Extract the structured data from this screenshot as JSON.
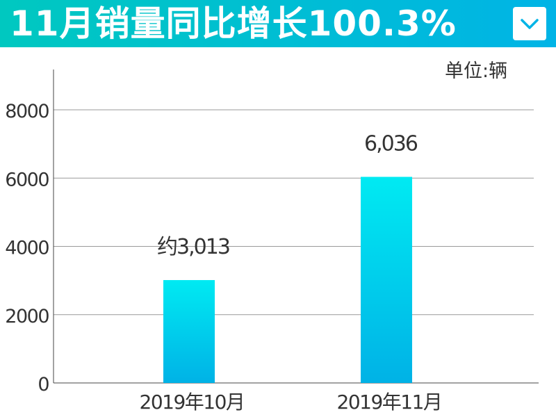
{
  "header": {
    "title": "11月销量同比增长100.3%",
    "dropdown_icon": "chevron-down-icon"
  },
  "colors": {
    "header_start": "#00c8c0",
    "header_end": "#00b4e6",
    "bar_top": "#00eaf2",
    "bar_bottom": "#00b2e6",
    "grid": "#999999"
  },
  "chart_data": {
    "type": "bar",
    "unit_label": "单位:辆",
    "categories": [
      "2019年10月",
      "2019年11月"
    ],
    "values": [
      3013,
      6036
    ],
    "value_labels": [
      "约3,013",
      "6,036"
    ],
    "ylim": [
      0,
      9000
    ],
    "yticks": [
      0,
      2000,
      4000,
      6000,
      8000
    ],
    "ytick_labels": [
      "0",
      "2000",
      "4000",
      "6000",
      "8000"
    ],
    "grid": true,
    "xlabel": "",
    "ylabel": ""
  }
}
